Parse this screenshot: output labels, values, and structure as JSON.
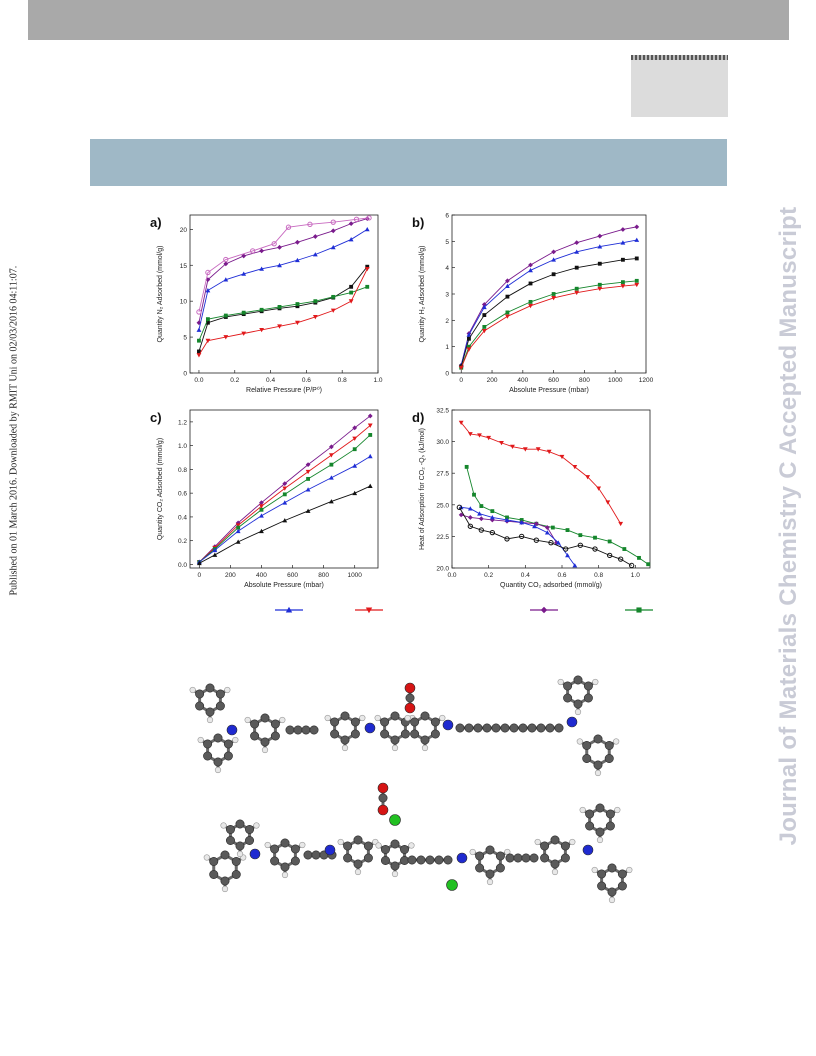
{
  "header": {},
  "side_note": "Published on 01 March 2016. Downloaded by RMIT Uni on 02/03/2016 04:11:07.",
  "watermark": "Journal of Materials Chemistry C Accepted Manuscript",
  "colors": {
    "blue": "#1f2ed6",
    "red": "#e1191b",
    "black": "#111111",
    "green": "#15862c",
    "purple": "#7a1b8c",
    "pink": "#c86ac0",
    "watermark": "#c9cbd6"
  },
  "chart_data": [
    {
      "panel": "a)",
      "type": "line",
      "xlabel": "Relative Pressure (P/P⁰)",
      "ylabel": "Quantity N₂ Adsorbed (mmol/g)",
      "xlim": [
        -0.05,
        1.0
      ],
      "ylim": [
        0,
        22
      ],
      "xticks": [
        "0.0",
        "0.2",
        "0.4",
        "0.6",
        "0.8",
        "1.0"
      ],
      "yticks": [
        "0",
        "5",
        "10",
        "15",
        "20"
      ],
      "series": [
        {
          "color": "purple",
          "marker": "diamond",
          "x": [
            0.0,
            0.05,
            0.15,
            0.25,
            0.35,
            0.45,
            0.55,
            0.65,
            0.75,
            0.85,
            0.94
          ],
          "y": [
            7.0,
            13.0,
            15.2,
            16.3,
            17.0,
            17.5,
            18.2,
            19.0,
            19.8,
            20.8,
            21.5
          ]
        },
        {
          "color": "pink",
          "marker": "circle",
          "x": [
            0.0,
            0.05,
            0.15,
            0.3,
            0.42,
            0.5,
            0.62,
            0.75,
            0.88,
            0.95
          ],
          "y": [
            8.5,
            14.0,
            15.8,
            17.0,
            18.0,
            20.3,
            20.7,
            21.0,
            21.4,
            21.6
          ]
        },
        {
          "color": "blue",
          "marker": "triangle",
          "x": [
            0.0,
            0.05,
            0.15,
            0.25,
            0.35,
            0.45,
            0.55,
            0.65,
            0.75,
            0.85,
            0.94
          ],
          "y": [
            6.0,
            11.5,
            13.0,
            13.8,
            14.5,
            15.0,
            15.7,
            16.5,
            17.5,
            18.6,
            20.0
          ]
        },
        {
          "color": "black",
          "marker": "square",
          "x": [
            0.0,
            0.05,
            0.15,
            0.25,
            0.35,
            0.45,
            0.55,
            0.65,
            0.75,
            0.85,
            0.94
          ],
          "y": [
            3.0,
            7.0,
            7.8,
            8.2,
            8.6,
            9.0,
            9.3,
            9.8,
            10.5,
            12.0,
            14.8
          ]
        },
        {
          "color": "green",
          "marker": "square",
          "x": [
            0.0,
            0.05,
            0.15,
            0.25,
            0.35,
            0.45,
            0.55,
            0.65,
            0.75,
            0.85,
            0.94
          ],
          "y": [
            4.5,
            7.5,
            8.0,
            8.4,
            8.8,
            9.2,
            9.6,
            10.0,
            10.6,
            11.2,
            12.0
          ]
        },
        {
          "color": "red",
          "marker": "triangle-down",
          "x": [
            0.0,
            0.05,
            0.15,
            0.25,
            0.35,
            0.45,
            0.55,
            0.65,
            0.75,
            0.85,
            0.94
          ],
          "y": [
            2.5,
            4.5,
            5.0,
            5.5,
            6.0,
            6.5,
            7.0,
            7.8,
            8.7,
            10.0,
            14.5
          ]
        }
      ]
    },
    {
      "panel": "b)",
      "type": "line",
      "xlabel": "Absolute Pressure (mbar)",
      "ylabel": "Quantity H₂ Adsorbed (mmol/g)",
      "xlim": [
        -60,
        1200
      ],
      "ylim": [
        0,
        6
      ],
      "xticks": [
        "0",
        "200",
        "400",
        "600",
        "800",
        "1000",
        "1200"
      ],
      "yticks": [
        "0",
        "1",
        "2",
        "3",
        "4",
        "5",
        "6"
      ],
      "series": [
        {
          "color": "purple",
          "marker": "diamond",
          "x": [
            0,
            50,
            150,
            300,
            450,
            600,
            750,
            900,
            1050,
            1140
          ],
          "y": [
            0.3,
            1.5,
            2.6,
            3.5,
            4.1,
            4.6,
            4.95,
            5.2,
            5.45,
            5.55
          ]
        },
        {
          "color": "blue",
          "marker": "triangle",
          "x": [
            0,
            50,
            150,
            300,
            450,
            600,
            750,
            900,
            1050,
            1140
          ],
          "y": [
            0.3,
            1.45,
            2.5,
            3.3,
            3.9,
            4.3,
            4.6,
            4.8,
            4.95,
            5.05
          ]
        },
        {
          "color": "black",
          "marker": "square",
          "x": [
            0,
            50,
            150,
            300,
            450,
            600,
            750,
            900,
            1050,
            1140
          ],
          "y": [
            0.25,
            1.3,
            2.2,
            2.9,
            3.4,
            3.75,
            4.0,
            4.15,
            4.3,
            4.35
          ]
        },
        {
          "color": "green",
          "marker": "square",
          "x": [
            0,
            50,
            150,
            300,
            450,
            600,
            750,
            900,
            1050,
            1140
          ],
          "y": [
            0.2,
            1.0,
            1.75,
            2.3,
            2.7,
            3.0,
            3.2,
            3.35,
            3.45,
            3.5
          ]
        },
        {
          "color": "red",
          "marker": "triangle-down",
          "x": [
            0,
            50,
            150,
            300,
            450,
            600,
            750,
            900,
            1050,
            1140
          ],
          "y": [
            0.2,
            0.9,
            1.6,
            2.15,
            2.55,
            2.85,
            3.05,
            3.2,
            3.3,
            3.35
          ]
        }
      ]
    },
    {
      "panel": "c)",
      "type": "line",
      "xlabel": "Absolute Pressure (mbar)",
      "ylabel": "Quantity CO₂ Adsorbed (mmol/g)",
      "xlim": [
        -60,
        1150
      ],
      "ylim": [
        -0.03,
        1.3
      ],
      "xticks": [
        "0",
        "200",
        "400",
        "600",
        "800",
        "1000"
      ],
      "yticks": [
        "0.0",
        "0.2",
        "0.4",
        "0.6",
        "0.8",
        "1.0",
        "1.2"
      ],
      "series": [
        {
          "color": "purple",
          "marker": "diamond",
          "x": [
            0,
            100,
            250,
            400,
            550,
            700,
            850,
            1000,
            1100
          ],
          "y": [
            0.02,
            0.15,
            0.35,
            0.52,
            0.68,
            0.84,
            0.99,
            1.15,
            1.25
          ]
        },
        {
          "color": "red",
          "marker": "triangle-down",
          "x": [
            0,
            100,
            250,
            400,
            550,
            700,
            850,
            1000,
            1100
          ],
          "y": [
            0.02,
            0.14,
            0.33,
            0.49,
            0.64,
            0.78,
            0.92,
            1.06,
            1.17
          ]
        },
        {
          "color": "green",
          "marker": "square",
          "x": [
            0,
            100,
            250,
            400,
            550,
            700,
            850,
            1000,
            1100
          ],
          "y": [
            0.02,
            0.13,
            0.31,
            0.46,
            0.59,
            0.72,
            0.84,
            0.97,
            1.09
          ]
        },
        {
          "color": "blue",
          "marker": "triangle",
          "x": [
            0,
            100,
            250,
            400,
            550,
            700,
            850,
            1000,
            1100
          ],
          "y": [
            0.02,
            0.12,
            0.28,
            0.41,
            0.52,
            0.63,
            0.73,
            0.83,
            0.91
          ]
        },
        {
          "color": "black",
          "marker": "triangle",
          "x": [
            0,
            100,
            250,
            400,
            550,
            700,
            850,
            1000,
            1100
          ],
          "y": [
            0.01,
            0.08,
            0.19,
            0.28,
            0.37,
            0.45,
            0.53,
            0.6,
            0.66
          ]
        }
      ]
    },
    {
      "panel": "d)",
      "type": "line",
      "xlabel": "Quantity CO₂ adsorbed (mmol/g)",
      "ylabel": "Heat of Adsorption for CO₂ -Qₛ (kJ/mol)",
      "xlim": [
        0,
        1.08
      ],
      "ylim": [
        20.0,
        32.5
      ],
      "xticks": [
        "0.0",
        "0.2",
        "0.4",
        "0.6",
        "0.8",
        "1.0"
      ],
      "yticks": [
        "20.0",
        "22.5",
        "25.0",
        "27.5",
        "30.0",
        "32.5"
      ],
      "series": [
        {
          "color": "red",
          "marker": "triangle-down",
          "x": [
            0.05,
            0.1,
            0.15,
            0.2,
            0.27,
            0.33,
            0.4,
            0.47,
            0.53,
            0.6,
            0.67,
            0.74,
            0.8,
            0.85,
            0.92
          ],
          "y": [
            31.5,
            30.6,
            30.5,
            30.3,
            29.9,
            29.6,
            29.4,
            29.4,
            29.2,
            28.8,
            28.0,
            27.2,
            26.3,
            25.2,
            23.5
          ]
        },
        {
          "color": "green",
          "marker": "square",
          "x": [
            0.08,
            0.12,
            0.16,
            0.22,
            0.3,
            0.38,
            0.46,
            0.55,
            0.63,
            0.7,
            0.78,
            0.86,
            0.94,
            1.02,
            1.07
          ],
          "y": [
            28.0,
            25.8,
            24.9,
            24.5,
            24.0,
            23.8,
            23.5,
            23.2,
            23.0,
            22.6,
            22.4,
            22.1,
            21.5,
            20.8,
            20.3
          ]
        },
        {
          "color": "purple",
          "marker": "diamond",
          "x": [
            0.05,
            0.1,
            0.16,
            0.22,
            0.3,
            0.38,
            0.46,
            0.52,
            0.57
          ],
          "y": [
            24.2,
            24.0,
            23.9,
            23.8,
            23.7,
            23.6,
            23.5,
            23.2,
            22.0
          ]
        },
        {
          "color": "blue",
          "marker": "triangle",
          "x": [
            0.05,
            0.1,
            0.15,
            0.22,
            0.3,
            0.38,
            0.45,
            0.52,
            0.58,
            0.63,
            0.67
          ],
          "y": [
            24.8,
            24.7,
            24.3,
            24.0,
            23.8,
            23.6,
            23.3,
            22.8,
            22.0,
            21.0,
            20.2
          ]
        },
        {
          "color": "black",
          "marker": "circle",
          "x": [
            0.04,
            0.1,
            0.16,
            0.22,
            0.3,
            0.38,
            0.46,
            0.54,
            0.62,
            0.7,
            0.78,
            0.86,
            0.92,
            0.98
          ],
          "y": [
            24.8,
            23.3,
            23.0,
            22.8,
            22.3,
            22.5,
            22.2,
            22.0,
            21.5,
            21.8,
            21.5,
            21.0,
            20.7,
            20.2
          ]
        }
      ]
    }
  ],
  "legend": [
    {
      "color": "blue",
      "marker": "triangle"
    },
    {
      "color": "red",
      "marker": "triangle-down"
    },
    {
      "color": "purple",
      "marker": "diamond"
    },
    {
      "color": "green",
      "marker": "square"
    }
  ]
}
